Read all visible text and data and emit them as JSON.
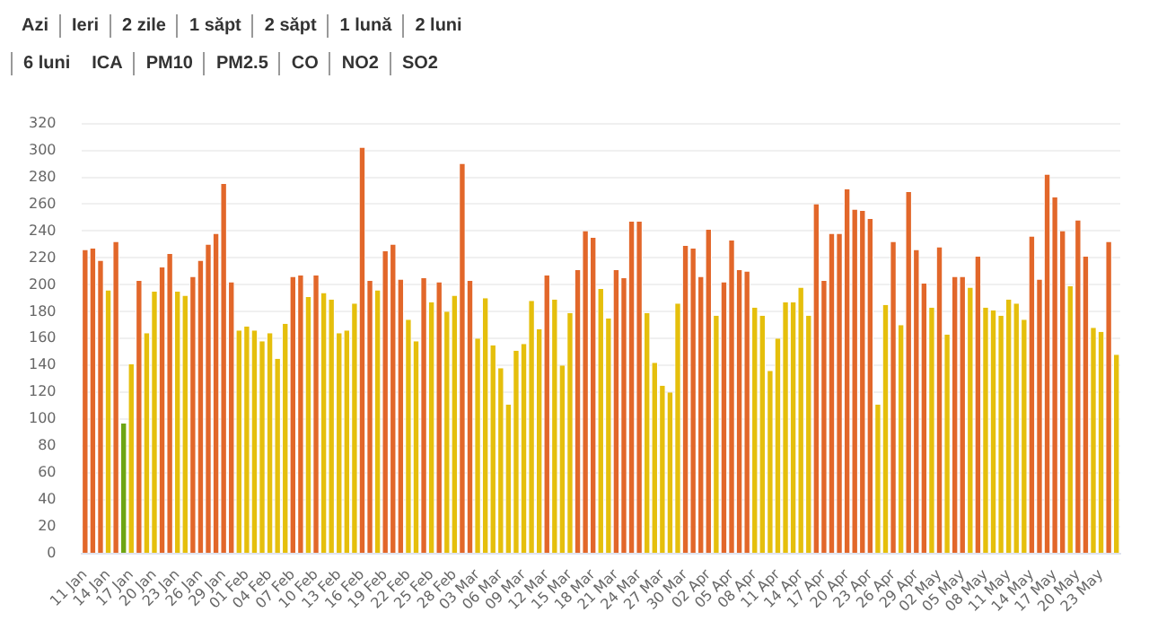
{
  "chart_data": {
    "type": "bar",
    "annotations": [
      "Azi",
      "Ieri",
      "2 zile",
      "1 săpt",
      "2 săpt",
      "1 lună",
      "2 luni",
      "6 luni",
      "ICA",
      "PM10",
      "PM2.5",
      "CO",
      "NO2",
      "SO2"
    ],
    "categories": [
      "11 Jan",
      null,
      null,
      "14 Jan",
      null,
      null,
      "17 Jan",
      null,
      null,
      "20 Jan",
      null,
      null,
      "23 Jan",
      null,
      null,
      "26 Jan",
      null,
      null,
      "29 Jan",
      null,
      null,
      "01 Feb",
      null,
      null,
      "04 Feb",
      null,
      null,
      "07 Feb",
      null,
      null,
      "10 Feb",
      null,
      null,
      "13 Feb",
      null,
      null,
      "16 Feb",
      null,
      null,
      "19 Feb",
      null,
      null,
      "22 Feb",
      null,
      null,
      "25 Feb",
      null,
      null,
      "28 Feb",
      null,
      null,
      "03 Mar",
      null,
      null,
      "06 Mar",
      null,
      null,
      "09 Mar",
      null,
      null,
      "12 Mar",
      null,
      null,
      "15 Mar",
      null,
      null,
      "18 Mar",
      null,
      null,
      "21 Mar",
      null,
      null,
      "24 Mar",
      null,
      null,
      "27 Mar",
      null,
      null,
      "30 Mar",
      null,
      null,
      "02 Apr",
      null,
      null,
      "05 Apr",
      null,
      null,
      "08 Apr",
      null,
      null,
      "11 Apr",
      null,
      null,
      "14 Apr",
      null,
      null,
      "17 Apr",
      null,
      null,
      "20 Apr",
      null,
      null,
      "23 Apr",
      null,
      null,
      "26 Apr",
      null,
      null,
      "29 Apr",
      null,
      null,
      "02 May",
      null,
      null,
      "05 May",
      null,
      null,
      "08 May",
      null,
      null,
      "11 May",
      null,
      null,
      "14 May",
      null,
      null,
      "17 May",
      null,
      null,
      "20 May",
      null,
      null,
      "23 May",
      null,
      null
    ],
    "values": [
      226,
      227,
      218,
      196,
      232,
      97,
      141,
      203,
      164,
      195,
      213,
      223,
      195,
      192,
      206,
      218,
      230,
      238,
      275,
      202,
      166,
      169,
      166,
      158,
      164,
      145,
      171,
      206,
      207,
      191,
      207,
      194,
      189,
      164,
      166,
      186,
      302,
      203,
      196,
      225,
      230,
      204,
      174,
      158,
      205,
      187,
      202,
      180,
      192,
      290,
      203,
      160,
      190,
      155,
      138,
      111,
      151,
      156,
      188,
      167,
      207,
      189,
      140,
      179,
      211,
      240,
      235,
      197,
      175,
      211,
      205,
      247,
      247,
      179,
      142,
      125,
      120,
      186,
      229,
      227,
      206,
      241,
      177,
      202,
      233,
      211,
      210,
      183,
      177,
      136,
      160,
      187,
      187,
      198,
      177,
      260,
      203,
      238,
      238,
      271,
      256,
      255,
      249,
      111,
      185,
      232,
      170,
      269,
      226,
      201,
      183,
      228,
      163,
      206,
      206,
      198,
      221,
      183,
      181,
      177,
      189,
      186,
      174,
      236,
      204,
      282,
      265,
      240,
      199,
      248,
      221,
      168,
      165,
      232,
      148
    ],
    "colors": [
      "#e2672a",
      "#e2672a",
      "#e2672a",
      "#e5bf0c",
      "#e2672a",
      "#6ea514",
      "#e5bf0c",
      "#e2672a",
      "#e5bf0c",
      "#e5bf0c",
      "#e2672a",
      "#e2672a",
      "#e5bf0c",
      "#e5bf0c",
      "#e2672a",
      "#e2672a",
      "#e2672a",
      "#e2672a",
      "#e2672a",
      "#e2672a",
      "#e5bf0c",
      "#e5bf0c",
      "#e5bf0c",
      "#e5bf0c",
      "#e5bf0c",
      "#e5bf0c",
      "#e5bf0c",
      "#e2672a",
      "#e2672a",
      "#e5bf0c",
      "#e2672a",
      "#e5bf0c",
      "#e5bf0c",
      "#e5bf0c",
      "#e5bf0c",
      "#e5bf0c",
      "#e2672a",
      "#e2672a",
      "#e5bf0c",
      "#e2672a",
      "#e2672a",
      "#e2672a",
      "#e5bf0c",
      "#e5bf0c",
      "#e2672a",
      "#e5bf0c",
      "#e2672a",
      "#e5bf0c",
      "#e5bf0c",
      "#e2672a",
      "#e2672a",
      "#e5bf0c",
      "#e5bf0c",
      "#e5bf0c",
      "#e5bf0c",
      "#e5bf0c",
      "#e5bf0c",
      "#e5bf0c",
      "#e5bf0c",
      "#e5bf0c",
      "#e2672a",
      "#e5bf0c",
      "#e5bf0c",
      "#e5bf0c",
      "#e2672a",
      "#e2672a",
      "#e2672a",
      "#e5bf0c",
      "#e5bf0c",
      "#e2672a",
      "#e2672a",
      "#e2672a",
      "#e2672a",
      "#e5bf0c",
      "#e5bf0c",
      "#e5bf0c",
      "#e5bf0c",
      "#e5bf0c",
      "#e2672a",
      "#e2672a",
      "#e2672a",
      "#e2672a",
      "#e5bf0c",
      "#e2672a",
      "#e2672a",
      "#e2672a",
      "#e2672a",
      "#e5bf0c",
      "#e5bf0c",
      "#e5bf0c",
      "#e5bf0c",
      "#e5bf0c",
      "#e5bf0c",
      "#e5bf0c",
      "#e5bf0c",
      "#e2672a",
      "#e2672a",
      "#e2672a",
      "#e2672a",
      "#e2672a",
      "#e2672a",
      "#e2672a",
      "#e2672a",
      "#e5bf0c",
      "#e5bf0c",
      "#e2672a",
      "#e5bf0c",
      "#e2672a",
      "#e2672a",
      "#e2672a",
      "#e5bf0c",
      "#e2672a",
      "#e5bf0c",
      "#e2672a",
      "#e2672a",
      "#e5bf0c",
      "#e2672a",
      "#e5bf0c",
      "#e5bf0c",
      "#e5bf0c",
      "#e5bf0c",
      "#e5bf0c",
      "#e5bf0c",
      "#e2672a",
      "#e2672a",
      "#e2672a",
      "#e2672a",
      "#e2672a",
      "#e5bf0c",
      "#e2672a",
      "#e2672a",
      "#e5bf0c",
      "#e5bf0c",
      "#e2672a",
      "#e5bf0c"
    ],
    "ylim": [
      0,
      320
    ],
    "yticks": [
      0,
      20,
      40,
      60,
      80,
      100,
      120,
      140,
      160,
      180,
      200,
      220,
      240,
      260,
      280,
      300,
      320
    ],
    "grid": "y",
    "legend": false
  }
}
